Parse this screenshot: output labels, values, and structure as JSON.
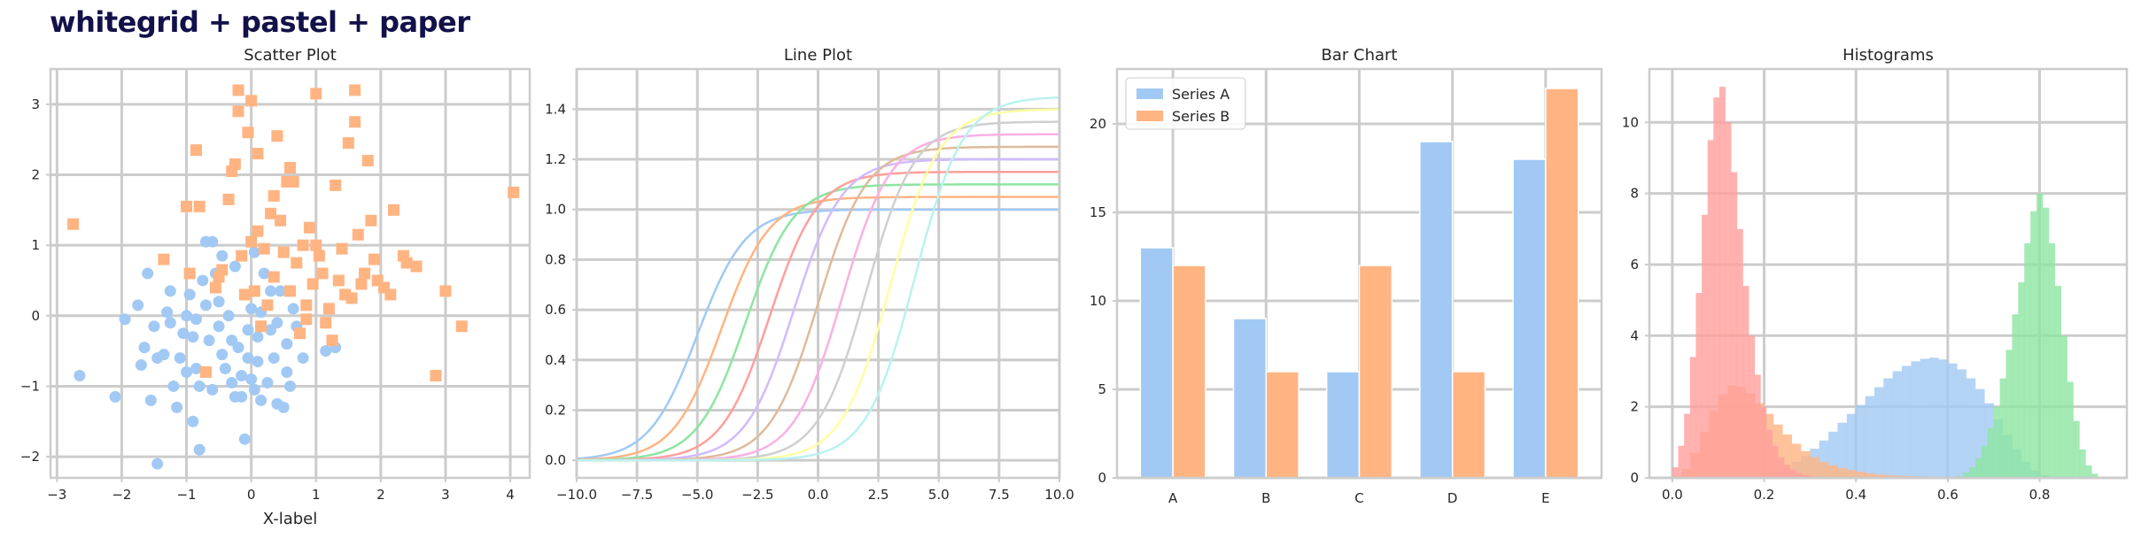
{
  "figure": {
    "title": "whitegrid + pastel + paper"
  },
  "chart_data": [
    {
      "type": "scatter",
      "title": "Scatter Plot",
      "xlabel": "X-label",
      "ylabel": "",
      "xlim": [
        -3.1,
        4.3
      ],
      "ylim": [
        -2.3,
        3.5
      ],
      "xticks": [
        -3,
        -2,
        -1,
        0,
        1,
        2,
        3,
        4
      ],
      "yticks": [
        -2,
        -1,
        0,
        1,
        2,
        3
      ],
      "grid": true,
      "series": [
        {
          "marker": "circle",
          "color": "#a1c9f4",
          "points": [
            [
              -2.65,
              -0.85
            ],
            [
              -2.1,
              -1.15
            ],
            [
              -1.95,
              -0.05
            ],
            [
              -1.75,
              0.15
            ],
            [
              -1.65,
              -0.45
            ],
            [
              -1.7,
              -0.7
            ],
            [
              -1.55,
              -1.2
            ],
            [
              -1.5,
              -0.15
            ],
            [
              -1.6,
              0.6
            ],
            [
              -1.45,
              -0.6
            ],
            [
              -1.35,
              -0.55
            ],
            [
              -1.3,
              0.05
            ],
            [
              -1.25,
              -0.1
            ],
            [
              -1.25,
              0.35
            ],
            [
              -1.2,
              -1.0
            ],
            [
              -1.15,
              -1.3
            ],
            [
              -1.1,
              -0.6
            ],
            [
              -1.05,
              -0.25
            ],
            [
              -1.0,
              -0.8
            ],
            [
              -1.0,
              0.0
            ],
            [
              -0.95,
              0.3
            ],
            [
              -0.9,
              -0.3
            ],
            [
              -0.9,
              -1.5
            ],
            [
              -0.85,
              -0.05
            ],
            [
              -0.85,
              -0.75
            ],
            [
              -0.8,
              -1.9
            ],
            [
              -0.8,
              -1.0
            ],
            [
              -0.75,
              0.5
            ],
            [
              -0.7,
              0.15
            ],
            [
              -0.7,
              1.05
            ],
            [
              -0.6,
              1.05
            ],
            [
              -0.65,
              -0.35
            ],
            [
              -0.55,
              0.6
            ],
            [
              -0.5,
              0.2
            ],
            [
              -0.5,
              -0.15
            ],
            [
              -0.45,
              -0.55
            ],
            [
              -0.45,
              0.85
            ],
            [
              -0.4,
              -0.75
            ],
            [
              -0.35,
              0.0
            ],
            [
              -0.3,
              -0.35
            ],
            [
              -0.3,
              -0.95
            ],
            [
              -0.25,
              -1.15
            ],
            [
              -0.2,
              -0.45
            ],
            [
              -0.15,
              -1.15
            ],
            [
              -0.15,
              -0.85
            ],
            [
              -0.1,
              0.3
            ],
            [
              -0.05,
              -0.2
            ],
            [
              -0.05,
              -0.6
            ],
            [
              0.0,
              -0.9
            ],
            [
              0.0,
              0.1
            ],
            [
              0.05,
              -1.05
            ],
            [
              0.05,
              0.9
            ],
            [
              0.1,
              -0.3
            ],
            [
              0.1,
              -0.65
            ],
            [
              0.15,
              0.05
            ],
            [
              0.2,
              0.6
            ],
            [
              0.25,
              -0.95
            ],
            [
              0.3,
              -0.2
            ],
            [
              0.3,
              0.35
            ],
            [
              0.35,
              -0.6
            ],
            [
              0.4,
              -0.1
            ],
            [
              0.4,
              -1.25
            ],
            [
              0.45,
              0.35
            ],
            [
              0.5,
              -1.3
            ],
            [
              0.55,
              -0.8
            ],
            [
              0.55,
              -0.4
            ],
            [
              0.6,
              -1.0
            ],
            [
              0.65,
              0.1
            ],
            [
              0.7,
              -0.15
            ],
            [
              0.8,
              -0.6
            ],
            [
              -0.1,
              -1.75
            ],
            [
              -1.45,
              -2.1
            ],
            [
              -0.6,
              -1.05
            ],
            [
              0.15,
              -1.2
            ],
            [
              1.15,
              -0.5
            ],
            [
              1.3,
              -0.45
            ],
            [
              -0.25,
              0.7
            ]
          ]
        },
        {
          "marker": "square",
          "color": "#ffb482",
          "points": [
            [
              -2.75,
              1.3
            ],
            [
              -1.35,
              0.8
            ],
            [
              -1.0,
              1.55
            ],
            [
              -0.95,
              0.6
            ],
            [
              -0.85,
              2.35
            ],
            [
              -0.8,
              1.55
            ],
            [
              -0.7,
              -0.8
            ],
            [
              -0.55,
              0.4
            ],
            [
              -0.5,
              0.55
            ],
            [
              -0.45,
              0.65
            ],
            [
              -0.35,
              1.65
            ],
            [
              -0.3,
              2.05
            ],
            [
              -0.25,
              2.15
            ],
            [
              -0.2,
              3.2
            ],
            [
              -0.2,
              2.9
            ],
            [
              -0.15,
              0.85
            ],
            [
              -0.1,
              0.3
            ],
            [
              -0.05,
              2.6
            ],
            [
              0.0,
              3.05
            ],
            [
              0.0,
              1.05
            ],
            [
              0.05,
              0.35
            ],
            [
              0.1,
              2.3
            ],
            [
              0.1,
              1.2
            ],
            [
              0.15,
              -0.15
            ],
            [
              0.2,
              0.95
            ],
            [
              0.25,
              0.15
            ],
            [
              0.3,
              1.45
            ],
            [
              0.35,
              1.7
            ],
            [
              0.4,
              2.55
            ],
            [
              0.45,
              1.35
            ],
            [
              0.5,
              0.9
            ],
            [
              0.55,
              1.9
            ],
            [
              0.6,
              0.35
            ],
            [
              0.65,
              1.9
            ],
            [
              0.7,
              0.75
            ],
            [
              0.75,
              -0.25
            ],
            [
              0.8,
              1.0
            ],
            [
              0.85,
              0.15
            ],
            [
              0.85,
              -0.05
            ],
            [
              0.9,
              1.25
            ],
            [
              0.95,
              0.45
            ],
            [
              1.0,
              1.0
            ],
            [
              1.0,
              3.15
            ],
            [
              1.05,
              0.85
            ],
            [
              1.1,
              0.6
            ],
            [
              1.2,
              0.1
            ],
            [
              1.25,
              -0.35
            ],
            [
              1.3,
              1.85
            ],
            [
              1.35,
              0.5
            ],
            [
              1.4,
              0.95
            ],
            [
              1.45,
              0.3
            ],
            [
              1.5,
              2.45
            ],
            [
              1.55,
              0.25
            ],
            [
              1.6,
              3.2
            ],
            [
              1.6,
              2.75
            ],
            [
              1.65,
              1.15
            ],
            [
              1.7,
              0.45
            ],
            [
              1.75,
              0.6
            ],
            [
              1.8,
              2.2
            ],
            [
              1.85,
              1.35
            ],
            [
              1.9,
              0.8
            ],
            [
              1.95,
              0.5
            ],
            [
              2.05,
              0.4
            ],
            [
              2.15,
              0.3
            ],
            [
              2.2,
              1.5
            ],
            [
              2.35,
              0.85
            ],
            [
              2.4,
              0.75
            ],
            [
              2.55,
              0.7
            ],
            [
              2.85,
              -0.85
            ],
            [
              3.0,
              0.35
            ],
            [
              3.25,
              -0.15
            ],
            [
              4.05,
              1.75
            ],
            [
              0.6,
              2.1
            ],
            [
              1.15,
              -0.1
            ],
            [
              0.35,
              0.55
            ]
          ]
        }
      ]
    },
    {
      "type": "line",
      "title": "Line Plot",
      "xlabel": "",
      "ylabel": "",
      "xlim": [
        -10,
        10
      ],
      "ylim": [
        -0.07,
        1.56
      ],
      "xticks": [
        -10.0,
        -7.5,
        -5.0,
        -2.5,
        0.0,
        2.5,
        5.0,
        7.5,
        10.0
      ],
      "xtick_labels": [
        "−10.0",
        "−7.5",
        "−5.0",
        "−2.5",
        "0.0",
        "2.5",
        "5.0",
        "7.5",
        "10.0"
      ],
      "yticks": [
        0.0,
        0.2,
        0.4,
        0.6,
        0.8,
        1.0,
        1.2,
        1.4
      ],
      "grid": true,
      "function": "y = amplitude / (1 + exp(-(x - center)))",
      "series": [
        {
          "center": -5.0,
          "amplitude": 1.0,
          "color": "#a1c9f4"
        },
        {
          "center": -4.0,
          "amplitude": 1.05,
          "color": "#ffb482"
        },
        {
          "center": -3.0,
          "amplitude": 1.1,
          "color": "#8de5a1"
        },
        {
          "center": -2.0,
          "amplitude": 1.15,
          "color": "#ff9f9b"
        },
        {
          "center": -1.0,
          "amplitude": 1.2,
          "color": "#d0bbff"
        },
        {
          "center": 0.0,
          "amplitude": 1.25,
          "color": "#debb9b"
        },
        {
          "center": 1.0,
          "amplitude": 1.3,
          "color": "#fab0e4"
        },
        {
          "center": 2.0,
          "amplitude": 1.35,
          "color": "#cfcfcf"
        },
        {
          "center": 3.0,
          "amplitude": 1.4,
          "color": "#fffea3"
        },
        {
          "center": 4.0,
          "amplitude": 1.45,
          "color": "#b9f2f0"
        }
      ]
    },
    {
      "type": "bar",
      "title": "Bar Chart",
      "xlabel": "",
      "ylabel": "",
      "categories": [
        "A",
        "B",
        "C",
        "D",
        "E"
      ],
      "ylim": [
        0,
        23.1
      ],
      "yticks": [
        0,
        5,
        10,
        15,
        20
      ],
      "grid": true,
      "legend": "top-left",
      "series": [
        {
          "name": "Series A",
          "values": [
            13,
            9,
            6,
            19,
            18
          ],
          "color": "#a1c9f4"
        },
        {
          "name": "Series B",
          "values": [
            12,
            6,
            12,
            6,
            22
          ],
          "color": "#ffb482"
        }
      ]
    },
    {
      "type": "bar",
      "subtype": "histogram",
      "title": "Histograms",
      "xlabel": "",
      "ylabel": "",
      "xlim": [
        -0.05,
        0.99
      ],
      "ylim": [
        0,
        11.5
      ],
      "xticks": [
        0.0,
        0.2,
        0.4,
        0.6,
        0.8
      ],
      "yticks": [
        0,
        2,
        4,
        6,
        8,
        10
      ],
      "grid": true,
      "series": [
        {
          "color": "#a1c9f4",
          "opacity": 0.8,
          "bins": [
            0.16,
            0.84
          ],
          "values": [
            0.02,
            0.05,
            0.1,
            0.18,
            0.3,
            0.45,
            0.62,
            0.82,
            1.05,
            1.3,
            1.55,
            1.8,
            2.05,
            2.3,
            2.55,
            2.8,
            3.0,
            3.15,
            3.28,
            3.35,
            3.38,
            3.33,
            3.22,
            3.05,
            2.8,
            2.5,
            2.1,
            1.65,
            1.2,
            0.8,
            0.45,
            0.2,
            0.08,
            0.03
          ]
        },
        {
          "color": "#ffb482",
          "opacity": 0.8,
          "bins": [
            0.0,
            0.68
          ],
          "values": [
            0.05,
            0.25,
            0.7,
            1.3,
            1.9,
            2.35,
            2.6,
            2.55,
            2.38,
            2.1,
            1.8,
            1.5,
            1.22,
            0.96,
            0.75,
            0.58,
            0.45,
            0.35,
            0.28,
            0.22,
            0.17,
            0.13,
            0.1,
            0.08,
            0.06,
            0.05,
            0.04,
            0.03,
            0.02,
            0.02,
            0.01,
            0.01,
            0.01,
            0.0
          ]
        },
        {
          "color": "#8de5a1",
          "opacity": 0.8,
          "bins": [
            0.62,
            0.94
          ],
          "values": [
            0.05,
            0.15,
            0.3,
            0.55,
            0.9,
            1.4,
            2.0,
            2.8,
            3.6,
            4.6,
            5.5,
            6.6,
            7.5,
            8.0,
            7.6,
            6.6,
            5.4,
            4.0,
            2.7,
            1.6,
            0.8,
            0.35,
            0.12,
            0.03
          ]
        },
        {
          "color": "#ff9f9b",
          "opacity": 0.8,
          "bins": [
            0.0,
            0.32
          ],
          "values": [
            0.3,
            0.9,
            1.8,
            3.4,
            5.2,
            7.4,
            9.5,
            10.7,
            11.0,
            10.0,
            8.6,
            7.0,
            5.4,
            4.0,
            2.9,
            2.0,
            1.35,
            0.9,
            0.58,
            0.37,
            0.23,
            0.14,
            0.08,
            0.05,
            0.02
          ]
        }
      ]
    }
  ]
}
